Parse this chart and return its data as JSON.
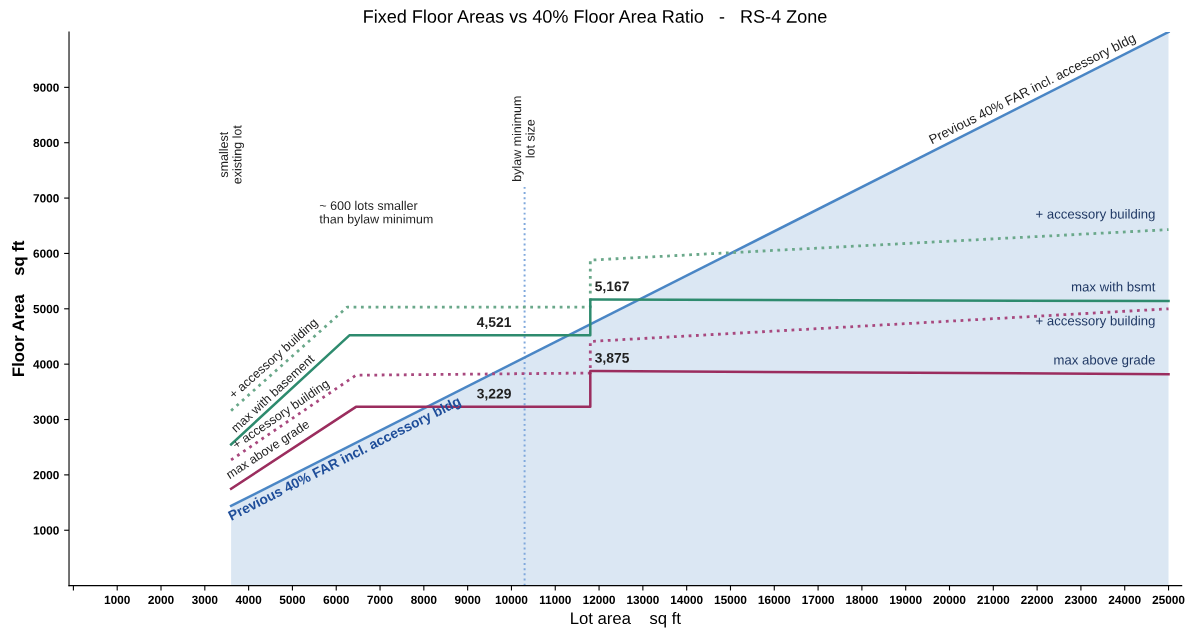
{
  "chart_data": {
    "type": "line",
    "title": "Fixed Floor Areas vs 40% Floor Area Ratio   -   RS-4 Zone",
    "xlabel": "Lot area    sq ft",
    "ylabel": "Floor Area    sq ft",
    "xlim": [
      -100,
      25300
    ],
    "ylim": [
      0,
      10000
    ],
    "xticks": [
      {
        "value": 0,
        "label": null
      },
      1000,
      2000,
      3000,
      4000,
      5000,
      6000,
      7000,
      8000,
      9000,
      10000,
      11000,
      12000,
      13000,
      14000,
      15000,
      16000,
      17000,
      18000,
      19000,
      20000,
      21000,
      22000,
      23000,
      24000,
      25000
    ],
    "yticks": [
      1000,
      2000,
      3000,
      4000,
      5000,
      6000,
      7000,
      8000,
      9000
    ],
    "grid": false,
    "legend": false,
    "series": [
      {
        "name": "Previous 40% FAR incl. accessory bldg",
        "type": "area",
        "color": "#4a86c5",
        "x": [
          3600,
          25000
        ],
        "values": [
          1440,
          10000
        ]
      },
      {
        "name": "+ accessory building",
        "line_style": "dotted",
        "color": "#6aa88a",
        "x": [
          3600,
          6250,
          11800,
          11800,
          25000
        ],
        "values": [
          3160,
          5030,
          5030,
          5880,
          6430
        ]
      },
      {
        "name": "max with bsmt",
        "line_style": "solid",
        "color": "#2e8b6e",
        "x": [
          3600,
          6300,
          10000,
          11800,
          11800,
          11900,
          25000
        ],
        "values": [
          2550,
          4521,
          4521,
          4521,
          5167,
          5167,
          5140
        ],
        "value_labels": [
          null,
          null,
          "4,521",
          null,
          null,
          "5,167",
          null
        ]
      },
      {
        "name": "+ accessory building",
        "line_style": "dotted",
        "color": "#a8487e",
        "x": [
          3600,
          6450,
          11800,
          11800,
          25000
        ],
        "values": [
          2270,
          3800,
          3840,
          4410,
          5000
        ]
      },
      {
        "name": "max above grade",
        "line_style": "solid",
        "color": "#9b2d5e",
        "x": [
          3600,
          6450,
          10000,
          11800,
          11800,
          11900,
          25000
        ],
        "values": [
          1750,
          3229,
          3229,
          3229,
          3875,
          3875,
          3820
        ],
        "value_labels": [
          null,
          null,
          "3,229",
          null,
          null,
          "3,875",
          null
        ]
      }
    ],
    "ref_lines": [
      {
        "axis": "x",
        "value": 10300,
        "label": "bylaw minimum\nlot size",
        "color": "#7fa8dc",
        "line_style": "dotted"
      }
    ],
    "annotations": [
      {
        "text": "+ accessory building",
        "x": 3700,
        "y": 3330
      },
      {
        "text": "max with basement",
        "x": 3750,
        "y": 2720
      },
      {
        "text": "+ accessory building",
        "x": 3750,
        "y": 2420
      },
      {
        "text": "max above grade",
        "x": 3600,
        "y": 1880
      },
      {
        "text": "Previous 40% FAR incl. accessory bldg",
        "x": 3500,
        "y": 1330
      },
      "smallest\nexisting lot",
      "~ 600 lots smaller\nthan bylaw minimum"
    ]
  }
}
